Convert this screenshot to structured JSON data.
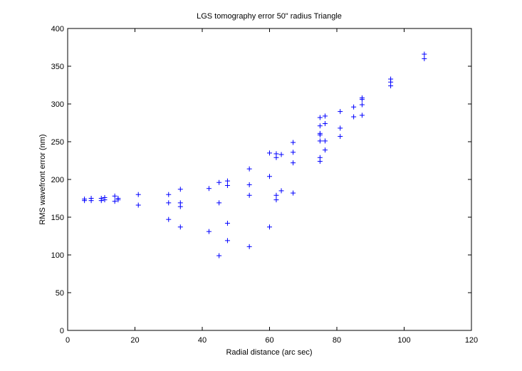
{
  "chart_data": {
    "type": "scatter",
    "title": "LGS tomography error 50\" radius Triangle",
    "xlabel": "Radial distance (arc sec)",
    "ylabel": "RMS wavefront error (nm)",
    "xlim": [
      0,
      120
    ],
    "ylim": [
      0,
      400
    ],
    "xticks": [
      "0",
      "20",
      "40",
      "60",
      "80",
      "100",
      "120"
    ],
    "yticks": [
      "0",
      "50",
      "100",
      "150",
      "200",
      "250",
      "300",
      "350",
      "400"
    ],
    "grid": false,
    "marker": "+",
    "color": "#0000ff",
    "series": [
      {
        "points": [
          [
            5,
            172
          ],
          [
            5,
            174
          ],
          [
            7,
            172
          ],
          [
            7,
            175
          ],
          [
            10,
            172
          ],
          [
            10,
            175
          ],
          [
            11,
            173
          ],
          [
            11,
            176
          ],
          [
            14,
            171
          ],
          [
            14,
            178
          ],
          [
            15,
            173
          ],
          [
            15,
            175
          ],
          [
            21,
            166
          ],
          [
            21,
            180
          ],
          [
            30,
            147
          ],
          [
            30,
            169
          ],
          [
            30,
            180
          ],
          [
            33.5,
            137
          ],
          [
            33.5,
            164
          ],
          [
            33.5,
            169
          ],
          [
            33.5,
            187
          ],
          [
            42,
            131
          ],
          [
            42,
            188
          ],
          [
            45,
            99
          ],
          [
            45,
            169
          ],
          [
            45,
            196
          ],
          [
            47.5,
            119
          ],
          [
            47.5,
            142
          ],
          [
            47.5,
            192
          ],
          [
            47.5,
            198
          ],
          [
            54,
            111
          ],
          [
            54,
            179
          ],
          [
            54,
            193
          ],
          [
            54,
            214
          ],
          [
            60,
            137
          ],
          [
            60,
            204
          ],
          [
            60,
            235
          ],
          [
            62,
            173
          ],
          [
            62,
            179
          ],
          [
            62,
            229
          ],
          [
            62,
            234
          ],
          [
            63.5,
            185
          ],
          [
            63.5,
            233
          ],
          [
            67,
            182
          ],
          [
            67,
            222
          ],
          [
            67,
            236
          ],
          [
            67,
            249
          ],
          [
            75,
            224
          ],
          [
            75,
            229
          ],
          [
            75,
            251
          ],
          [
            75,
            259
          ],
          [
            75,
            261
          ],
          [
            75,
            271
          ],
          [
            75,
            282
          ],
          [
            76.5,
            239
          ],
          [
            76.5,
            251
          ],
          [
            76.5,
            274
          ],
          [
            76.5,
            284
          ],
          [
            81,
            257
          ],
          [
            81,
            268
          ],
          [
            81,
            290
          ],
          [
            85,
            283
          ],
          [
            85,
            296
          ],
          [
            87.5,
            285
          ],
          [
            87.5,
            299
          ],
          [
            87.5,
            306
          ],
          [
            87.5,
            308
          ],
          [
            96,
            324
          ],
          [
            96,
            329
          ],
          [
            96,
            333
          ],
          [
            106,
            360
          ],
          [
            106,
            366
          ]
        ]
      }
    ]
  }
}
